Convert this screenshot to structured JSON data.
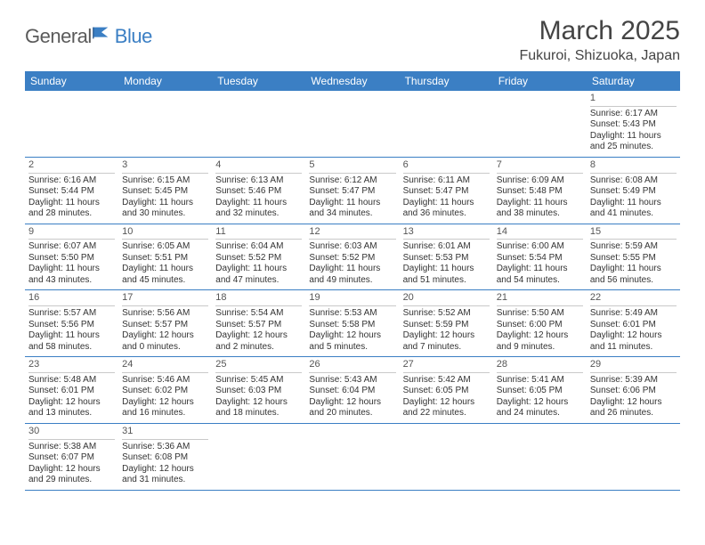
{
  "brand": {
    "general": "General",
    "blue": "Blue"
  },
  "title": "March 2025",
  "location": "Fukuroi, Shizuoka, Japan",
  "colors": {
    "header_bg": "#3b7fc4",
    "header_text": "#ffffff",
    "grid_line": "#3b7fc4",
    "day_divider": "#c9c9c9",
    "text": "#333333",
    "logo_gray": "#5a5a5a",
    "logo_blue": "#3b7fc4"
  },
  "day_headers": [
    "Sunday",
    "Monday",
    "Tuesday",
    "Wednesday",
    "Thursday",
    "Friday",
    "Saturday"
  ],
  "weeks": [
    [
      null,
      null,
      null,
      null,
      null,
      null,
      {
        "n": "1",
        "sr": "Sunrise: 6:17 AM",
        "ss": "Sunset: 5:43 PM",
        "dl": "Daylight: 11 hours and 25 minutes."
      }
    ],
    [
      {
        "n": "2",
        "sr": "Sunrise: 6:16 AM",
        "ss": "Sunset: 5:44 PM",
        "dl": "Daylight: 11 hours and 28 minutes."
      },
      {
        "n": "3",
        "sr": "Sunrise: 6:15 AM",
        "ss": "Sunset: 5:45 PM",
        "dl": "Daylight: 11 hours and 30 minutes."
      },
      {
        "n": "4",
        "sr": "Sunrise: 6:13 AM",
        "ss": "Sunset: 5:46 PM",
        "dl": "Daylight: 11 hours and 32 minutes."
      },
      {
        "n": "5",
        "sr": "Sunrise: 6:12 AM",
        "ss": "Sunset: 5:47 PM",
        "dl": "Daylight: 11 hours and 34 minutes."
      },
      {
        "n": "6",
        "sr": "Sunrise: 6:11 AM",
        "ss": "Sunset: 5:47 PM",
        "dl": "Daylight: 11 hours and 36 minutes."
      },
      {
        "n": "7",
        "sr": "Sunrise: 6:09 AM",
        "ss": "Sunset: 5:48 PM",
        "dl": "Daylight: 11 hours and 38 minutes."
      },
      {
        "n": "8",
        "sr": "Sunrise: 6:08 AM",
        "ss": "Sunset: 5:49 PM",
        "dl": "Daylight: 11 hours and 41 minutes."
      }
    ],
    [
      {
        "n": "9",
        "sr": "Sunrise: 6:07 AM",
        "ss": "Sunset: 5:50 PM",
        "dl": "Daylight: 11 hours and 43 minutes."
      },
      {
        "n": "10",
        "sr": "Sunrise: 6:05 AM",
        "ss": "Sunset: 5:51 PM",
        "dl": "Daylight: 11 hours and 45 minutes."
      },
      {
        "n": "11",
        "sr": "Sunrise: 6:04 AM",
        "ss": "Sunset: 5:52 PM",
        "dl": "Daylight: 11 hours and 47 minutes."
      },
      {
        "n": "12",
        "sr": "Sunrise: 6:03 AM",
        "ss": "Sunset: 5:52 PM",
        "dl": "Daylight: 11 hours and 49 minutes."
      },
      {
        "n": "13",
        "sr": "Sunrise: 6:01 AM",
        "ss": "Sunset: 5:53 PM",
        "dl": "Daylight: 11 hours and 51 minutes."
      },
      {
        "n": "14",
        "sr": "Sunrise: 6:00 AM",
        "ss": "Sunset: 5:54 PM",
        "dl": "Daylight: 11 hours and 54 minutes."
      },
      {
        "n": "15",
        "sr": "Sunrise: 5:59 AM",
        "ss": "Sunset: 5:55 PM",
        "dl": "Daylight: 11 hours and 56 minutes."
      }
    ],
    [
      {
        "n": "16",
        "sr": "Sunrise: 5:57 AM",
        "ss": "Sunset: 5:56 PM",
        "dl": "Daylight: 11 hours and 58 minutes."
      },
      {
        "n": "17",
        "sr": "Sunrise: 5:56 AM",
        "ss": "Sunset: 5:57 PM",
        "dl": "Daylight: 12 hours and 0 minutes."
      },
      {
        "n": "18",
        "sr": "Sunrise: 5:54 AM",
        "ss": "Sunset: 5:57 PM",
        "dl": "Daylight: 12 hours and 2 minutes."
      },
      {
        "n": "19",
        "sr": "Sunrise: 5:53 AM",
        "ss": "Sunset: 5:58 PM",
        "dl": "Daylight: 12 hours and 5 minutes."
      },
      {
        "n": "20",
        "sr": "Sunrise: 5:52 AM",
        "ss": "Sunset: 5:59 PM",
        "dl": "Daylight: 12 hours and 7 minutes."
      },
      {
        "n": "21",
        "sr": "Sunrise: 5:50 AM",
        "ss": "Sunset: 6:00 PM",
        "dl": "Daylight: 12 hours and 9 minutes."
      },
      {
        "n": "22",
        "sr": "Sunrise: 5:49 AM",
        "ss": "Sunset: 6:01 PM",
        "dl": "Daylight: 12 hours and 11 minutes."
      }
    ],
    [
      {
        "n": "23",
        "sr": "Sunrise: 5:48 AM",
        "ss": "Sunset: 6:01 PM",
        "dl": "Daylight: 12 hours and 13 minutes."
      },
      {
        "n": "24",
        "sr": "Sunrise: 5:46 AM",
        "ss": "Sunset: 6:02 PM",
        "dl": "Daylight: 12 hours and 16 minutes."
      },
      {
        "n": "25",
        "sr": "Sunrise: 5:45 AM",
        "ss": "Sunset: 6:03 PM",
        "dl": "Daylight: 12 hours and 18 minutes."
      },
      {
        "n": "26",
        "sr": "Sunrise: 5:43 AM",
        "ss": "Sunset: 6:04 PM",
        "dl": "Daylight: 12 hours and 20 minutes."
      },
      {
        "n": "27",
        "sr": "Sunrise: 5:42 AM",
        "ss": "Sunset: 6:05 PM",
        "dl": "Daylight: 12 hours and 22 minutes."
      },
      {
        "n": "28",
        "sr": "Sunrise: 5:41 AM",
        "ss": "Sunset: 6:05 PM",
        "dl": "Daylight: 12 hours and 24 minutes."
      },
      {
        "n": "29",
        "sr": "Sunrise: 5:39 AM",
        "ss": "Sunset: 6:06 PM",
        "dl": "Daylight: 12 hours and 26 minutes."
      }
    ],
    [
      {
        "n": "30",
        "sr": "Sunrise: 5:38 AM",
        "ss": "Sunset: 6:07 PM",
        "dl": "Daylight: 12 hours and 29 minutes."
      },
      {
        "n": "31",
        "sr": "Sunrise: 5:36 AM",
        "ss": "Sunset: 6:08 PM",
        "dl": "Daylight: 12 hours and 31 minutes."
      },
      null,
      null,
      null,
      null,
      null
    ]
  ]
}
